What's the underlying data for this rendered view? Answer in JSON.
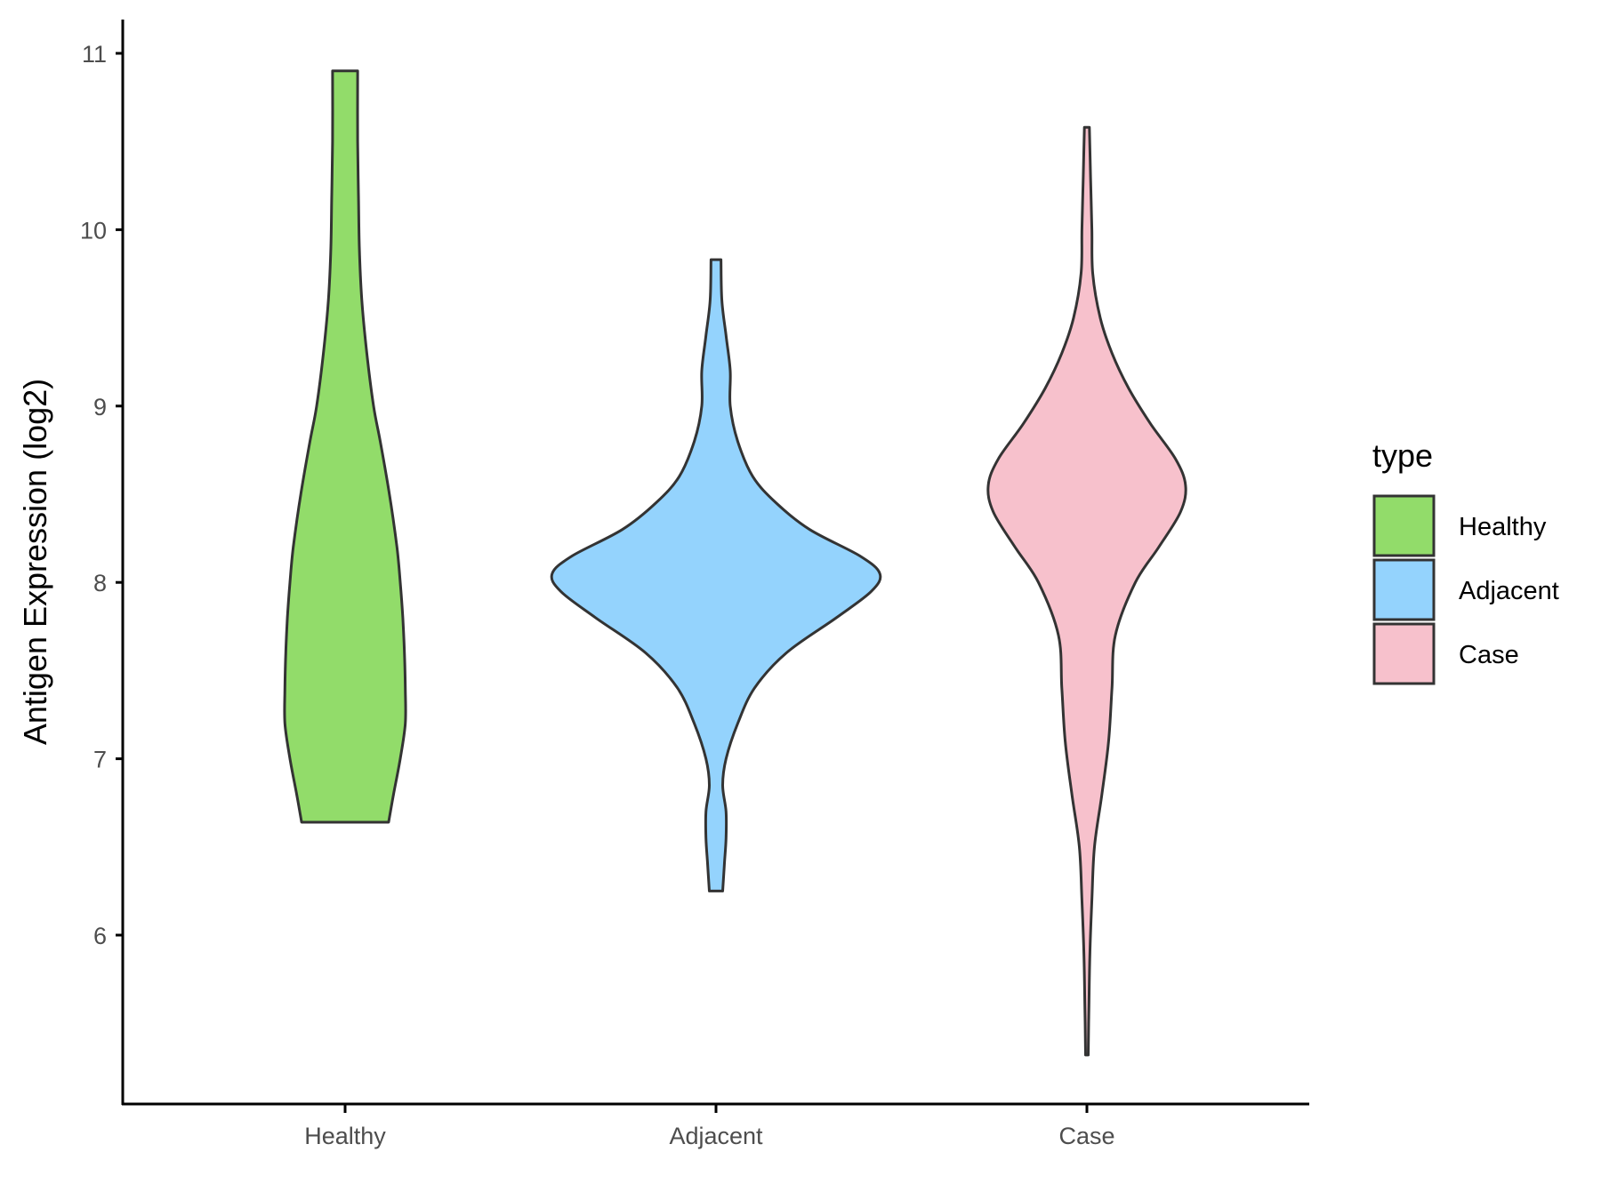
{
  "chart_data": {
    "type": "violin",
    "ylabel": "Antigen Expression (log2)",
    "xlabel": "",
    "title": "",
    "categories": [
      "Healthy",
      "Adjacent",
      "Case"
    ],
    "yticks": [
      6,
      7,
      8,
      9,
      10,
      11
    ],
    "ylim": [
      5.1,
      11.2
    ],
    "grid": false,
    "legend": {
      "title": "type",
      "position": "right",
      "entries": [
        "Healthy",
        "Adjacent",
        "Case"
      ]
    },
    "colors": {
      "Healthy": "#92dc6a",
      "Adjacent": "#94d3fd",
      "Case": "#f7c1cc",
      "outline": "#333333"
    },
    "series": [
      {
        "name": "Healthy",
        "min": 6.64,
        "max": 10.9,
        "density": [
          [
            6.64,
            0.26
          ],
          [
            6.8,
            0.29
          ],
          [
            7.0,
            0.33
          ],
          [
            7.2,
            0.36
          ],
          [
            7.4,
            0.36
          ],
          [
            7.6,
            0.355
          ],
          [
            7.8,
            0.345
          ],
          [
            8.0,
            0.33
          ],
          [
            8.2,
            0.31
          ],
          [
            8.5,
            0.265
          ],
          [
            8.8,
            0.21
          ],
          [
            9.0,
            0.17
          ],
          [
            9.3,
            0.13
          ],
          [
            9.6,
            0.1
          ],
          [
            9.9,
            0.085
          ],
          [
            10.2,
            0.08
          ],
          [
            10.5,
            0.075
          ],
          [
            10.9,
            0.075
          ]
        ]
      },
      {
        "name": "Adjacent",
        "min": 6.25,
        "max": 9.83,
        "density": [
          [
            6.25,
            0.04
          ],
          [
            6.4,
            0.05
          ],
          [
            6.55,
            0.06
          ],
          [
            6.7,
            0.06
          ],
          [
            6.85,
            0.04
          ],
          [
            7.0,
            0.06
          ],
          [
            7.2,
            0.13
          ],
          [
            7.4,
            0.23
          ],
          [
            7.6,
            0.42
          ],
          [
            7.8,
            0.72
          ],
          [
            7.95,
            0.93
          ],
          [
            8.05,
            0.98
          ],
          [
            8.15,
            0.86
          ],
          [
            8.3,
            0.56
          ],
          [
            8.45,
            0.36
          ],
          [
            8.6,
            0.22
          ],
          [
            8.8,
            0.13
          ],
          [
            9.0,
            0.085
          ],
          [
            9.2,
            0.085
          ],
          [
            9.4,
            0.06
          ],
          [
            9.6,
            0.035
          ],
          [
            9.83,
            0.03
          ]
        ]
      },
      {
        "name": "Case",
        "min": 5.32,
        "max": 10.58,
        "density": [
          [
            5.32,
            0.008
          ],
          [
            5.6,
            0.012
          ],
          [
            5.9,
            0.018
          ],
          [
            6.2,
            0.03
          ],
          [
            6.5,
            0.045
          ],
          [
            6.8,
            0.09
          ],
          [
            7.1,
            0.13
          ],
          [
            7.4,
            0.15
          ],
          [
            7.7,
            0.17
          ],
          [
            8.0,
            0.29
          ],
          [
            8.2,
            0.43
          ],
          [
            8.4,
            0.56
          ],
          [
            8.55,
            0.59
          ],
          [
            8.7,
            0.53
          ],
          [
            8.9,
            0.38
          ],
          [
            9.1,
            0.25
          ],
          [
            9.3,
            0.15
          ],
          [
            9.5,
            0.08
          ],
          [
            9.75,
            0.035
          ],
          [
            10.0,
            0.03
          ],
          [
            10.3,
            0.022
          ],
          [
            10.58,
            0.015
          ]
        ]
      }
    ]
  }
}
